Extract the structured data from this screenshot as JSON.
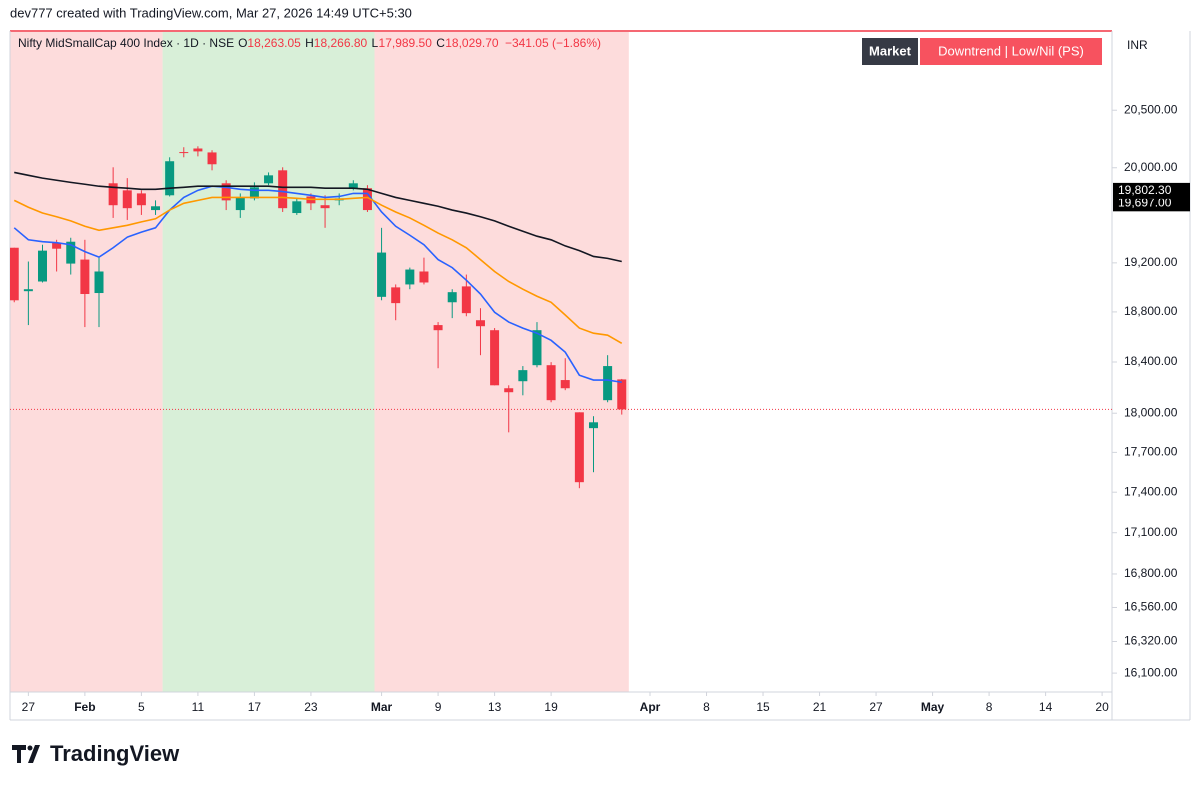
{
  "header": {
    "credit": "dev777 created with TradingView.com, Mar 27, 2026 14:49 UTC+5:30",
    "ohlc": [
      {
        "key": "O",
        "value": "18,263.05"
      },
      {
        "key": "H",
        "value": "18,266.80"
      },
      {
        "key": "L",
        "value": "17,989.50"
      },
      {
        "key": "C",
        "value": "18,029.70"
      }
    ],
    "change": "−341.05 (−1.86%)",
    "badges": [
      "Market",
      "Downtrend | Low/Nil (PS)"
    ],
    "currency": "INR"
  },
  "footer": {
    "brand": "TradingView"
  },
  "chart_data": {
    "type": "candlestick",
    "title": "Nifty MidSmallCap 400 Index · 1D · NSE",
    "x": [
      0,
      1,
      2,
      3,
      4,
      5,
      6,
      7,
      8,
      9,
      10,
      11,
      12,
      13,
      14,
      15,
      16,
      17,
      18,
      19,
      20,
      21,
      22,
      23,
      24,
      25,
      26,
      27,
      28,
      29,
      30,
      31,
      32,
      33,
      34,
      35,
      36,
      37,
      38,
      39,
      40,
      41,
      42,
      43
    ],
    "open": [
      19325,
      18968,
      19047,
      19367,
      19194,
      19227,
      18953,
      19867,
      19807,
      19781,
      19640,
      19765,
      20135,
      20166,
      20132,
      19867,
      19640,
      19739,
      19867,
      19978,
      19615,
      19755,
      19681,
      19722,
      19825,
      19825,
      18922,
      18999,
      19023,
      19129,
      18694,
      18878,
      19007,
      18733,
      18653,
      18194,
      18249,
      18375,
      18375,
      18258,
      18007,
      17885,
      18101,
      18263.05
    ],
    "high": [
      19325,
      19211,
      19350,
      19391,
      19408,
      19391,
      19243,
      20004,
      19911,
      19807,
      19722,
      20090,
      20177,
      20185,
      20151,
      19893,
      19781,
      19875,
      19960,
      20004,
      19739,
      19781,
      19765,
      19781,
      19893,
      19851,
      19491,
      19023,
      19161,
      19243,
      18718,
      18984,
      19104,
      18830,
      18670,
      18217,
      18368,
      18718,
      18399,
      18430,
      18007,
      17977,
      18454,
      18266.8
    ],
    "low": [
      18878,
      18694,
      19039,
      19129,
      19104,
      18678,
      18678,
      19574,
      19557,
      19599,
      19599,
      19755,
      20090,
      20098,
      19978,
      19640,
      19574,
      19722,
      19851,
      19624,
      19599,
      19640,
      19491,
      19681,
      19807,
      19624,
      18894,
      18733,
      18984,
      19023,
      18351,
      18750,
      18765,
      18454,
      18217,
      17853,
      18139,
      18358,
      18085,
      18179,
      17430,
      17550,
      18085,
      17989.5
    ],
    "close": [
      18894,
      18984,
      19301,
      19317,
      19375,
      18945,
      19129,
      19681,
      19656,
      19681,
      19672,
      20056,
      20130,
      20141,
      20030,
      19722,
      19747,
      19833,
      19935,
      19656,
      19714,
      19697,
      19656,
      19739,
      19867,
      19640,
      19285,
      18871,
      19145,
      19039,
      18653,
      18960,
      18790,
      18685,
      18217,
      18163,
      18336,
      18653,
      18101,
      18194,
      17475,
      17930,
      18368,
      18029.7
    ],
    "up_color": "#089981",
    "down_color": "#f23645",
    "series": [
      {
        "color": "#2962ff",
        "values": [
          19491,
          19391,
          19375,
          19367,
          19350,
          19293,
          19247,
          19325,
          19413,
          19455,
          19491,
          19640,
          19747,
          19807,
          19842,
          19833,
          19816,
          19807,
          19807,
          19797,
          19781,
          19765,
          19747,
          19755,
          19781,
          19781,
          19624,
          19504,
          19429,
          19350,
          19227,
          19161,
          19058,
          18945,
          18797,
          18718,
          18670,
          18629,
          18572,
          18478,
          18296,
          18258,
          18258,
          18241
        ]
      },
      {
        "color": "#ff9800",
        "values": [
          19722,
          19664,
          19615,
          19584,
          19549,
          19504,
          19470,
          19491,
          19512,
          19541,
          19567,
          19640,
          19697,
          19722,
          19747,
          19747,
          19747,
          19747,
          19747,
          19747,
          19739,
          19731,
          19731,
          19731,
          19739,
          19747,
          19681,
          19624,
          19574,
          19512,
          19447,
          19391,
          19325,
          19227,
          19129,
          19047,
          18984,
          18927,
          18878,
          18775,
          18670,
          18629,
          18613,
          18548
        ]
      },
      {
        "color": "#131722",
        "values": [
          19960,
          19935,
          19911,
          19893,
          19875,
          19859,
          19842,
          19833,
          19825,
          19816,
          19816,
          19825,
          19833,
          19842,
          19842,
          19842,
          19842,
          19842,
          19842,
          19833,
          19833,
          19833,
          19825,
          19825,
          19825,
          19816,
          19781,
          19747,
          19722,
          19697,
          19672,
          19640,
          19615,
          19584,
          19549,
          19504,
          19462,
          19421,
          19391,
          19340,
          19301,
          19253,
          19237,
          19211
        ]
      }
    ],
    "background_regions": [
      {
        "from": -0.3,
        "to": 10.5,
        "color": "#fddcdc"
      },
      {
        "from": 10.5,
        "to": 25.5,
        "color": "#d8efd8"
      },
      {
        "from": 25.5,
        "to": 43.5,
        "color": "#fddcdc"
      }
    ],
    "log_scale": true,
    "ylim": [
      15970,
      21200
    ],
    "yticks": [
      {
        "value": 20500,
        "label": "20,500.00"
      },
      {
        "value": 20000,
        "label": "20,000.00"
      },
      {
        "value": 19200,
        "label": "19,200.00"
      },
      {
        "value": 18800,
        "label": "18,800.00"
      },
      {
        "value": 18400,
        "label": "18,400.00"
      },
      {
        "value": 18000,
        "label": "18,000.00"
      },
      {
        "value": 17700,
        "label": "17,700.00"
      },
      {
        "value": 17400,
        "label": "17,400.00"
      },
      {
        "value": 17100,
        "label": "17,100.00"
      },
      {
        "value": 16800,
        "label": "16,800.00"
      },
      {
        "value": 16560,
        "label": "16,560.00"
      },
      {
        "value": 16320,
        "label": "16,320.00"
      },
      {
        "value": 16100,
        "label": "16,100.00"
      }
    ],
    "price_labels": [
      {
        "value": 19697,
        "label": "19,697.00"
      },
      {
        "value": 19802.3,
        "label": "19,802.30"
      }
    ],
    "xlim": [
      -0.3,
      77.7
    ],
    "xticks": [
      {
        "value": 1,
        "label": "27"
      },
      {
        "value": 5,
        "label": "Feb"
      },
      {
        "value": 9,
        "label": "5"
      },
      {
        "value": 13,
        "label": "11"
      },
      {
        "value": 17,
        "label": "17"
      },
      {
        "value": 21,
        "label": "23"
      },
      {
        "value": 26,
        "label": "Mar"
      },
      {
        "value": 30,
        "label": "9"
      },
      {
        "value": 34,
        "label": "13"
      },
      {
        "value": 38,
        "label": "19"
      },
      {
        "value": 45,
        "label": "Apr"
      },
      {
        "value": 49,
        "label": "8"
      },
      {
        "value": 53,
        "label": "15"
      },
      {
        "value": 57,
        "label": "21"
      },
      {
        "value": 61,
        "label": "27"
      },
      {
        "value": 65,
        "label": "May"
      },
      {
        "value": 69,
        "label": "8"
      },
      {
        "value": 73,
        "label": "14"
      },
      {
        "value": 77,
        "label": "20"
      }
    ]
  }
}
